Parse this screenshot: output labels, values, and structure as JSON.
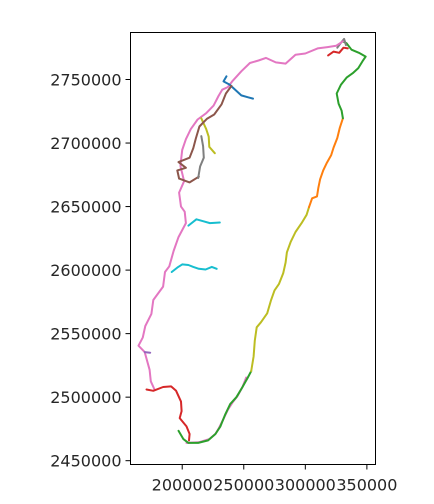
{
  "chart_data": {
    "type": "line",
    "title": "",
    "xlabel": "",
    "ylabel": "",
    "xlim": [
      158000,
      357000
    ],
    "ylim": [
      2447000,
      2787000
    ],
    "grid": false,
    "legend": "none",
    "x_ticks": [
      {
        "value": 200000,
        "label": "200000"
      },
      {
        "value": 250000,
        "label": "250000"
      },
      {
        "value": 300000,
        "label": "300000"
      },
      {
        "value": 350000,
        "label": "350000"
      }
    ],
    "y_ticks": [
      {
        "value": 2450000,
        "label": "2450000"
      },
      {
        "value": 2500000,
        "label": "2500000"
      },
      {
        "value": 2550000,
        "label": "2550000"
      },
      {
        "value": 2600000,
        "label": "2600000"
      },
      {
        "value": 2650000,
        "label": "2650000"
      },
      {
        "value": 2700000,
        "label": "2700000"
      },
      {
        "value": 2750000,
        "label": "2750000"
      }
    ],
    "series": [
      {
        "color": "#e377c2",
        "points": [
          [
            203500,
            2464000
          ],
          [
            213500,
            2464500
          ],
          [
            222000,
            2467000
          ],
          [
            227000,
            2471000
          ],
          [
            230000,
            2476000
          ],
          [
            233500,
            2483000
          ],
          [
            237000,
            2490000
          ],
          [
            241000,
            2496000
          ],
          [
            245000,
            2501000
          ],
          [
            249000,
            2508000
          ],
          [
            252000,
            2515500
          ]
        ]
      },
      {
        "color": "#2ca02c",
        "points": [
          [
            197000,
            2473500
          ],
          [
            201000,
            2467000
          ],
          [
            205000,
            2464000
          ],
          [
            213000,
            2464000
          ],
          [
            221000,
            2466000
          ],
          [
            227000,
            2471000
          ],
          [
            231000,
            2477000
          ],
          [
            235000,
            2486500
          ],
          [
            239000,
            2494500
          ],
          [
            244000,
            2500000
          ],
          [
            249000,
            2508000
          ],
          [
            253000,
            2515000
          ],
          [
            256000,
            2520500
          ]
        ]
      },
      {
        "color": "#bcbd22",
        "points": [
          [
            256000,
            2520500
          ],
          [
            258000,
            2532000
          ],
          [
            259000,
            2544500
          ],
          [
            260500,
            2555000
          ],
          [
            264000,
            2559000
          ],
          [
            269000,
            2566000
          ],
          [
            272000,
            2576000
          ],
          [
            275000,
            2584000
          ],
          [
            278500,
            2589000
          ],
          [
            282000,
            2597500
          ],
          [
            284000,
            2606000
          ],
          [
            285000,
            2614000
          ],
          [
            288000,
            2622000
          ],
          [
            292000,
            2630000
          ],
          [
            297000,
            2637000
          ],
          [
            301000,
            2643500
          ],
          [
            303000,
            2649500
          ]
        ]
      },
      {
        "color": "#ff7f0e",
        "points": [
          [
            303000,
            2649500
          ],
          [
            305500,
            2656500
          ],
          [
            309500,
            2658000
          ],
          [
            310500,
            2664500
          ],
          [
            312000,
            2671500
          ],
          [
            314500,
            2678500
          ],
          [
            317500,
            2684500
          ],
          [
            321000,
            2690500
          ],
          [
            323000,
            2696500
          ],
          [
            326000,
            2704000
          ],
          [
            328000,
            2712000
          ],
          [
            330500,
            2719500
          ]
        ]
      },
      {
        "color": "#2ca02c",
        "points": [
          [
            330500,
            2719500
          ],
          [
            329500,
            2725500
          ],
          [
            327000,
            2731000
          ],
          [
            325500,
            2739000
          ],
          [
            329000,
            2746000
          ],
          [
            333500,
            2751500
          ],
          [
            338500,
            2755000
          ],
          [
            343000,
            2759000
          ],
          [
            346500,
            2764500
          ],
          [
            349000,
            2768000
          ],
          [
            343500,
            2771000
          ],
          [
            337500,
            2773500
          ],
          [
            333500,
            2778500
          ],
          [
            330500,
            2780000
          ]
        ]
      },
      {
        "color": "#d62728",
        "points": [
          [
            318500,
            2769000
          ],
          [
            323000,
            2772000
          ],
          [
            327500,
            2771000
          ],
          [
            331000,
            2775000
          ],
          [
            334500,
            2774500
          ]
        ]
      },
      {
        "color": "#7f7f7f",
        "points": [
          [
            326000,
            2775000
          ],
          [
            329000,
            2779000
          ],
          [
            331500,
            2782000
          ],
          [
            333000,
            2777000
          ]
        ]
      },
      {
        "color": "#e377c2",
        "points": [
          [
            330500,
            2780000
          ],
          [
            325000,
            2776500
          ],
          [
            318000,
            2775500
          ],
          [
            310000,
            2774500
          ],
          [
            300000,
            2770500
          ],
          [
            292000,
            2769500
          ],
          [
            284000,
            2762500
          ],
          [
            276000,
            2763500
          ],
          [
            268000,
            2767000
          ],
          [
            262000,
            2765000
          ],
          [
            255000,
            2763000
          ],
          [
            248000,
            2756500
          ],
          [
            241000,
            2749000
          ],
          [
            237000,
            2744000
          ],
          [
            232500,
            2742000
          ],
          [
            229500,
            2737000
          ],
          [
            225500,
            2729500
          ],
          [
            219500,
            2723500
          ],
          [
            212500,
            2718500
          ],
          [
            207000,
            2711000
          ],
          [
            203000,
            2703000
          ],
          [
            200000,
            2694500
          ],
          [
            198500,
            2682000
          ],
          [
            201500,
            2670000
          ],
          [
            197500,
            2661000
          ],
          [
            199000,
            2650000
          ],
          [
            202000,
            2646000
          ],
          [
            203000,
            2637000
          ],
          [
            197000,
            2626000
          ],
          [
            193000,
            2615000
          ],
          [
            189500,
            2603000
          ],
          [
            186000,
            2598500
          ],
          [
            184500,
            2587000
          ],
          [
            176500,
            2576500
          ],
          [
            175000,
            2565500
          ],
          [
            170000,
            2556000
          ],
          [
            168000,
            2547000
          ],
          [
            164500,
            2540500
          ],
          [
            169500,
            2535500
          ],
          [
            173500,
            2521500
          ],
          [
            174500,
            2512500
          ],
          [
            177500,
            2506000
          ]
        ]
      },
      {
        "color": "#d62728",
        "points": [
          [
            171000,
            2506000
          ],
          [
            176500,
            2505000
          ],
          [
            184500,
            2508000
          ],
          [
            191000,
            2508500
          ],
          [
            195000,
            2505000
          ],
          [
            199000,
            2496500
          ],
          [
            199500,
            2489000
          ],
          [
            198000,
            2483500
          ],
          [
            203500,
            2477000
          ],
          [
            206000,
            2471000
          ],
          [
            205500,
            2466000
          ]
        ]
      },
      {
        "color": "#1f77b4",
        "points": [
          [
            236000,
            2752500
          ],
          [
            233500,
            2748500
          ],
          [
            238500,
            2746000
          ],
          [
            244000,
            2741000
          ],
          [
            248000,
            2737500
          ],
          [
            253500,
            2736000
          ],
          [
            257500,
            2735000
          ]
        ]
      },
      {
        "color": "#bcbd22",
        "points": [
          [
            215500,
            2719500
          ],
          [
            219500,
            2711000
          ],
          [
            221500,
            2705000
          ],
          [
            222000,
            2697000
          ],
          [
            226500,
            2692000
          ]
        ]
      },
      {
        "color": "#8c564b",
        "points": [
          [
            240000,
            2745000
          ],
          [
            235500,
            2739000
          ],
          [
            232000,
            2730500
          ],
          [
            226000,
            2722500
          ],
          [
            220000,
            2719000
          ],
          [
            214000,
            2713000
          ],
          [
            211000,
            2703500
          ],
          [
            209000,
            2696000
          ],
          [
            206000,
            2688500
          ],
          [
            197000,
            2685000
          ],
          [
            203000,
            2680500
          ],
          [
            196000,
            2678500
          ],
          [
            197500,
            2672000
          ],
          [
            206000,
            2669000
          ],
          [
            213500,
            2673500
          ]
        ]
      },
      {
        "color": "#7f7f7f",
        "points": [
          [
            213000,
            2672500
          ],
          [
            214500,
            2681500
          ],
          [
            217500,
            2688500
          ],
          [
            217000,
            2697500
          ],
          [
            215500,
            2705500
          ]
        ]
      },
      {
        "color": "#17becf",
        "points": [
          [
            205000,
            2635000
          ],
          [
            211500,
            2640000
          ],
          [
            217000,
            2638500
          ],
          [
            222500,
            2637000
          ],
          [
            230500,
            2637500
          ]
        ]
      },
      {
        "color": "#17becf",
        "points": [
          [
            191500,
            2598500
          ],
          [
            196000,
            2602000
          ],
          [
            200000,
            2604500
          ],
          [
            205000,
            2604000
          ],
          [
            209000,
            2602500
          ],
          [
            213500,
            2601000
          ],
          [
            219000,
            2600500
          ],
          [
            224000,
            2602500
          ],
          [
            228000,
            2601000
          ]
        ]
      },
      {
        "color": "#9467bd",
        "points": [
          [
            169500,
            2535500
          ],
          [
            174000,
            2535000
          ]
        ]
      }
    ]
  }
}
